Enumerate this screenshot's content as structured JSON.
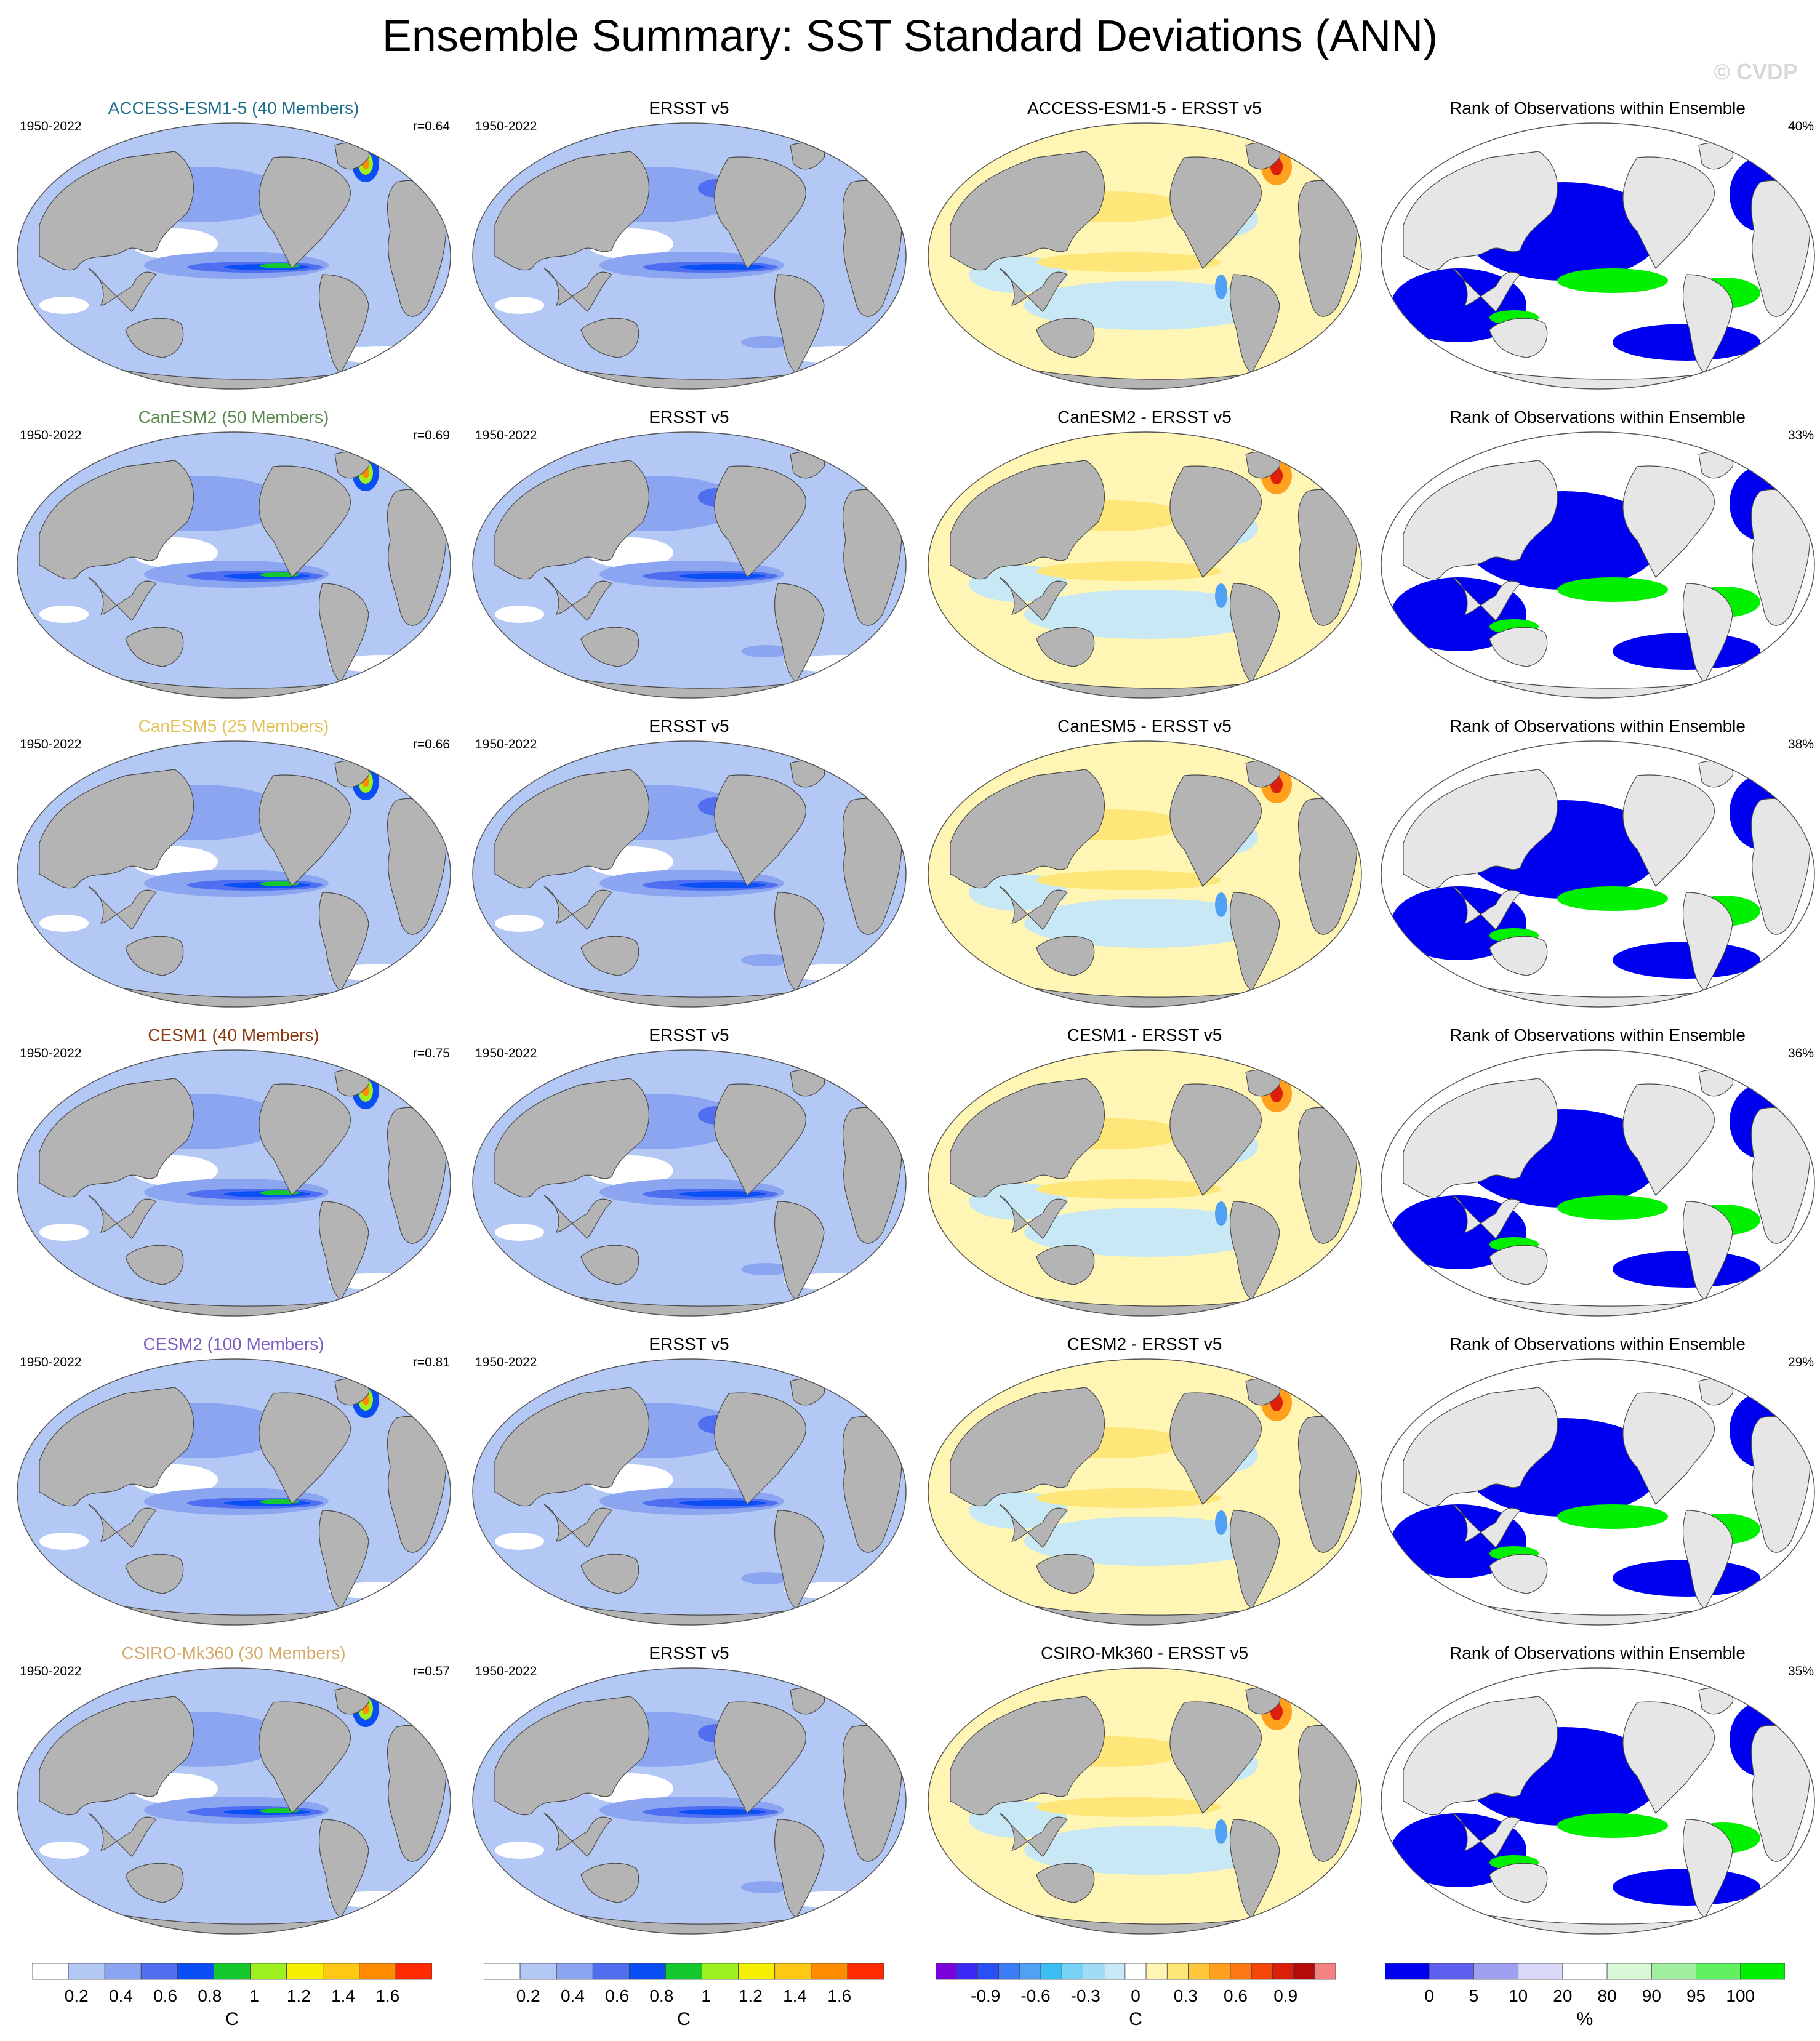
{
  "title": "Ensemble Summary: SST Standard Deviations (ANN)",
  "watermark": "© CVDP",
  "period": "1950-2022",
  "obs_name": "ERSST v5",
  "rank_title": "Rank of Observations within Ensemble",
  "rows": [
    {
      "model": "ACCESS-ESM1-5 (40 Members)",
      "model_color": "#1f6e8c",
      "r": "r=0.64",
      "diff_title": "ACCESS-ESM1-5 - ERSST v5",
      "rank_pct": "40%"
    },
    {
      "model": "CanESM2 (50 Members)",
      "model_color": "#5a8a4f",
      "r": "r=0.69",
      "diff_title": "CanESM2 - ERSST v5",
      "rank_pct": "33%"
    },
    {
      "model": "CanESM5 (25 Members)",
      "model_color": "#e0c35a",
      "r": "r=0.66",
      "diff_title": "CanESM5 - ERSST v5",
      "rank_pct": "38%"
    },
    {
      "model": "CESM1 (40 Members)",
      "model_color": "#8a3a12",
      "r": "r=0.75",
      "diff_title": "CESM1 - ERSST v5",
      "rank_pct": "36%"
    },
    {
      "model": "CESM2 (100 Members)",
      "model_color": "#7a5fc0",
      "r": "r=0.81",
      "diff_title": "CESM2 - ERSST v5",
      "rank_pct": "29%"
    },
    {
      "model": "CSIRO-Mk360 (30 Members)",
      "model_color": "#d4a96a",
      "r": "r=0.57",
      "diff_title": "CSIRO-Mk360 - ERSST v5",
      "rank_pct": "35%"
    }
  ],
  "colorbars": [
    {
      "unit": "C",
      "labels": [
        "0.2",
        "0.4",
        "0.6",
        "0.8",
        "1",
        "1.2",
        "1.4",
        "1.6"
      ],
      "colors": [
        "#ffffff",
        "#b4c8f5",
        "#8ca5f0",
        "#4f6ff0",
        "#0a4ff5",
        "#14c82d",
        "#9ef01e",
        "#f5f000",
        "#ffc814",
        "#ff8c00",
        "#ff2a00"
      ]
    },
    {
      "unit": "C",
      "labels": [
        "0.2",
        "0.4",
        "0.6",
        "0.8",
        "1",
        "1.2",
        "1.4",
        "1.6"
      ],
      "colors": [
        "#ffffff",
        "#b4c8f5",
        "#8ca5f0",
        "#4f6ff0",
        "#0a4ff5",
        "#14c82d",
        "#9ef01e",
        "#f5f000",
        "#ffc814",
        "#ff8c00",
        "#ff2a00"
      ]
    },
    {
      "unit": "C",
      "labels": [
        "-0.9",
        "-0.6",
        "-0.3",
        "0",
        "0.3",
        "0.6",
        "0.9"
      ],
      "colors": [
        "#7a00dc",
        "#3c28f5",
        "#2850f5",
        "#3c7df5",
        "#50a0f5",
        "#3cbef5",
        "#78d2f5",
        "#a0dcf5",
        "#c8e8f5",
        "#ffffff",
        "#fff5b4",
        "#ffe678",
        "#ffc83c",
        "#ffa01e",
        "#ff7814",
        "#f5460a",
        "#dc1e0a",
        "#b40a0a",
        "#f58282"
      ]
    },
    {
      "unit": "%",
      "labels": [
        "0",
        "5",
        "10",
        "20",
        "80",
        "90",
        "95",
        "100"
      ],
      "colors": [
        "#0000f0",
        "#6060f0",
        "#a0a0f0",
        "#d8d8f8",
        "#ffffff",
        "#d8f8d8",
        "#a0f0a0",
        "#60f060",
        "#00f000"
      ]
    }
  ]
}
